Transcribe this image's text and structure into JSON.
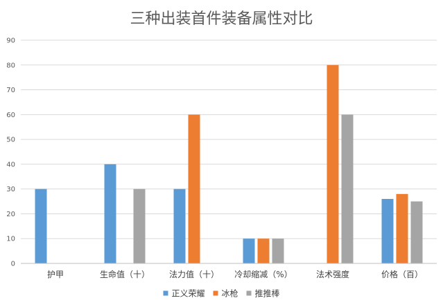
{
  "chart_data": {
    "type": "bar",
    "title": "三种出装首件装备属性对比",
    "categories": [
      "护甲",
      "生命值（十）",
      "法力值（十）",
      "冷却缩减（%）",
      "法术强度",
      "价格（百）"
    ],
    "series": [
      {
        "name": "正义荣耀",
        "color": "#5B9BD5",
        "values": [
          30,
          40,
          30,
          10,
          0,
          26
        ]
      },
      {
        "name": "冰枪",
        "color": "#ED7D31",
        "values": [
          0,
          0,
          60,
          10,
          80,
          28
        ]
      },
      {
        "name": "推推棒",
        "color": "#A5A5A5",
        "values": [
          0,
          30,
          0,
          10,
          60,
          25
        ]
      }
    ],
    "yticks": [
      "0",
      "10",
      "20",
      "30",
      "40",
      "50",
      "60",
      "70",
      "80",
      "90"
    ],
    "ylim": [
      0,
      90
    ],
    "xlabel": "",
    "ylabel": "",
    "grid": true,
    "legend": "bottom"
  }
}
